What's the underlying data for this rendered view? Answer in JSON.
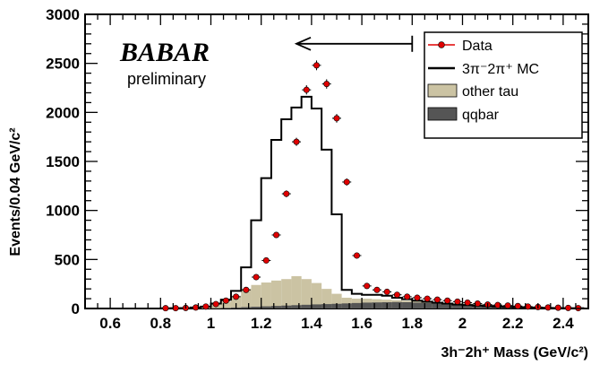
{
  "chart_data": {
    "type": "histogram",
    "x": [
      0.82,
      0.86,
      0.9,
      0.94,
      0.98,
      1.02,
      1.06,
      1.1,
      1.14,
      1.18,
      1.22,
      1.26,
      1.3,
      1.34,
      1.38,
      1.42,
      1.46,
      1.5,
      1.54,
      1.58,
      1.62,
      1.66,
      1.7,
      1.74,
      1.78,
      1.82,
      1.86,
      1.9,
      1.94,
      1.98,
      2.02,
      2.06,
      2.1,
      2.14,
      2.18,
      2.22,
      2.26,
      2.3,
      2.34,
      2.38,
      2.42,
      2.46
    ],
    "series": [
      {
        "name": "Data",
        "kind": "points",
        "color": "#e00000",
        "values": [
          3,
          4,
          6,
          10,
          20,
          45,
          80,
          120,
          190,
          320,
          490,
          750,
          1170,
          1700,
          2230,
          2480,
          2290,
          1940,
          1290,
          540,
          230,
          190,
          170,
          140,
          120,
          110,
          100,
          90,
          80,
          70,
          60,
          50,
          40,
          35,
          30,
          25,
          20,
          15,
          10,
          8,
          6,
          4
        ]
      },
      {
        "name": "3π⁻2π⁺ MC",
        "kind": "step",
        "color": "#000000",
        "values": [
          2,
          3,
          5,
          10,
          20,
          50,
          90,
          180,
          420,
          900,
          1330,
          1720,
          1930,
          2050,
          2160,
          2040,
          1620,
          960,
          190,
          150,
          140,
          140,
          130,
          110,
          95,
          80,
          70,
          60,
          50,
          40,
          35,
          30,
          25,
          20,
          15,
          12,
          10,
          8,
          6,
          5,
          4,
          3
        ]
      },
      {
        "name": "other tau",
        "kind": "filled",
        "color": "#cbc3a3",
        "values": [
          1,
          2,
          3,
          6,
          14,
          40,
          70,
          130,
          200,
          240,
          265,
          285,
          300,
          330,
          300,
          260,
          200,
          150,
          110,
          100,
          100,
          95,
          90,
          85,
          80,
          75,
          70,
          65,
          60,
          55,
          50,
          45,
          40,
          35,
          30,
          26,
          22,
          18,
          14,
          10,
          8,
          6
        ]
      },
      {
        "name": "qqbar",
        "kind": "filled",
        "color": "#555555",
        "values": [
          0,
          0,
          0,
          1,
          2,
          4,
          6,
          10,
          14,
          18,
          22,
          26,
          30,
          34,
          38,
          42,
          45,
          48,
          52,
          56,
          60,
          62,
          64,
          66,
          64,
          60,
          58,
          55,
          50,
          46,
          42,
          38,
          35,
          30,
          26,
          22,
          18,
          15,
          12,
          10,
          8,
          6
        ]
      }
    ],
    "xlim": [
      0.5,
      2.5
    ],
    "ylim": [
      0,
      3000
    ],
    "xticks": [
      "0.6",
      "0.8",
      "1",
      "1.2",
      "1.4",
      "1.6",
      "1.8",
      "2",
      "2.2",
      "2.4"
    ],
    "xtick_values": [
      0.6,
      0.8,
      1.0,
      1.2,
      1.4,
      1.6,
      1.8,
      2.0,
      2.2,
      2.4
    ],
    "yticks": [
      "0",
      "500",
      "1000",
      "1500",
      "2000",
      "2500",
      "3000"
    ],
    "ytick_values": [
      0,
      500,
      1000,
      1500,
      2000,
      2500,
      3000
    ],
    "xlabel": "3h⁻2h⁺ Mass (GeV/c²)",
    "ylabel": "Events/0.04 GeV/c²",
    "legend_position": "top-right",
    "arrow": {
      "from": 1.8,
      "to": 1.34,
      "y": 2700
    }
  },
  "logo": {
    "text": "BABAR",
    "subtitle": "preliminary"
  },
  "legend": [
    {
      "label": "Data",
      "style": "marker"
    },
    {
      "label": "3π⁻2π⁺ MC",
      "style": "line"
    },
    {
      "label": "other tau",
      "style": "fill-light"
    },
    {
      "label": "qqbar",
      "style": "fill-dark"
    }
  ]
}
